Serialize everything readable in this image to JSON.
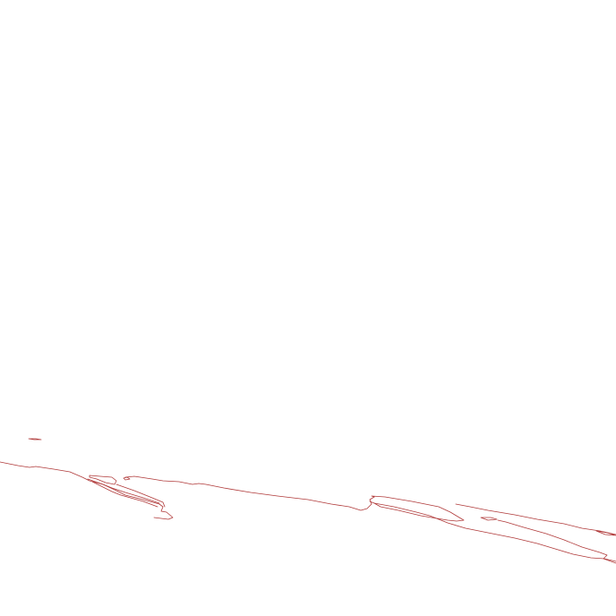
{
  "map": {
    "background_color": "#ffffff",
    "outline_color": "#b03a3a",
    "feature_type": "coastline outline"
  }
}
